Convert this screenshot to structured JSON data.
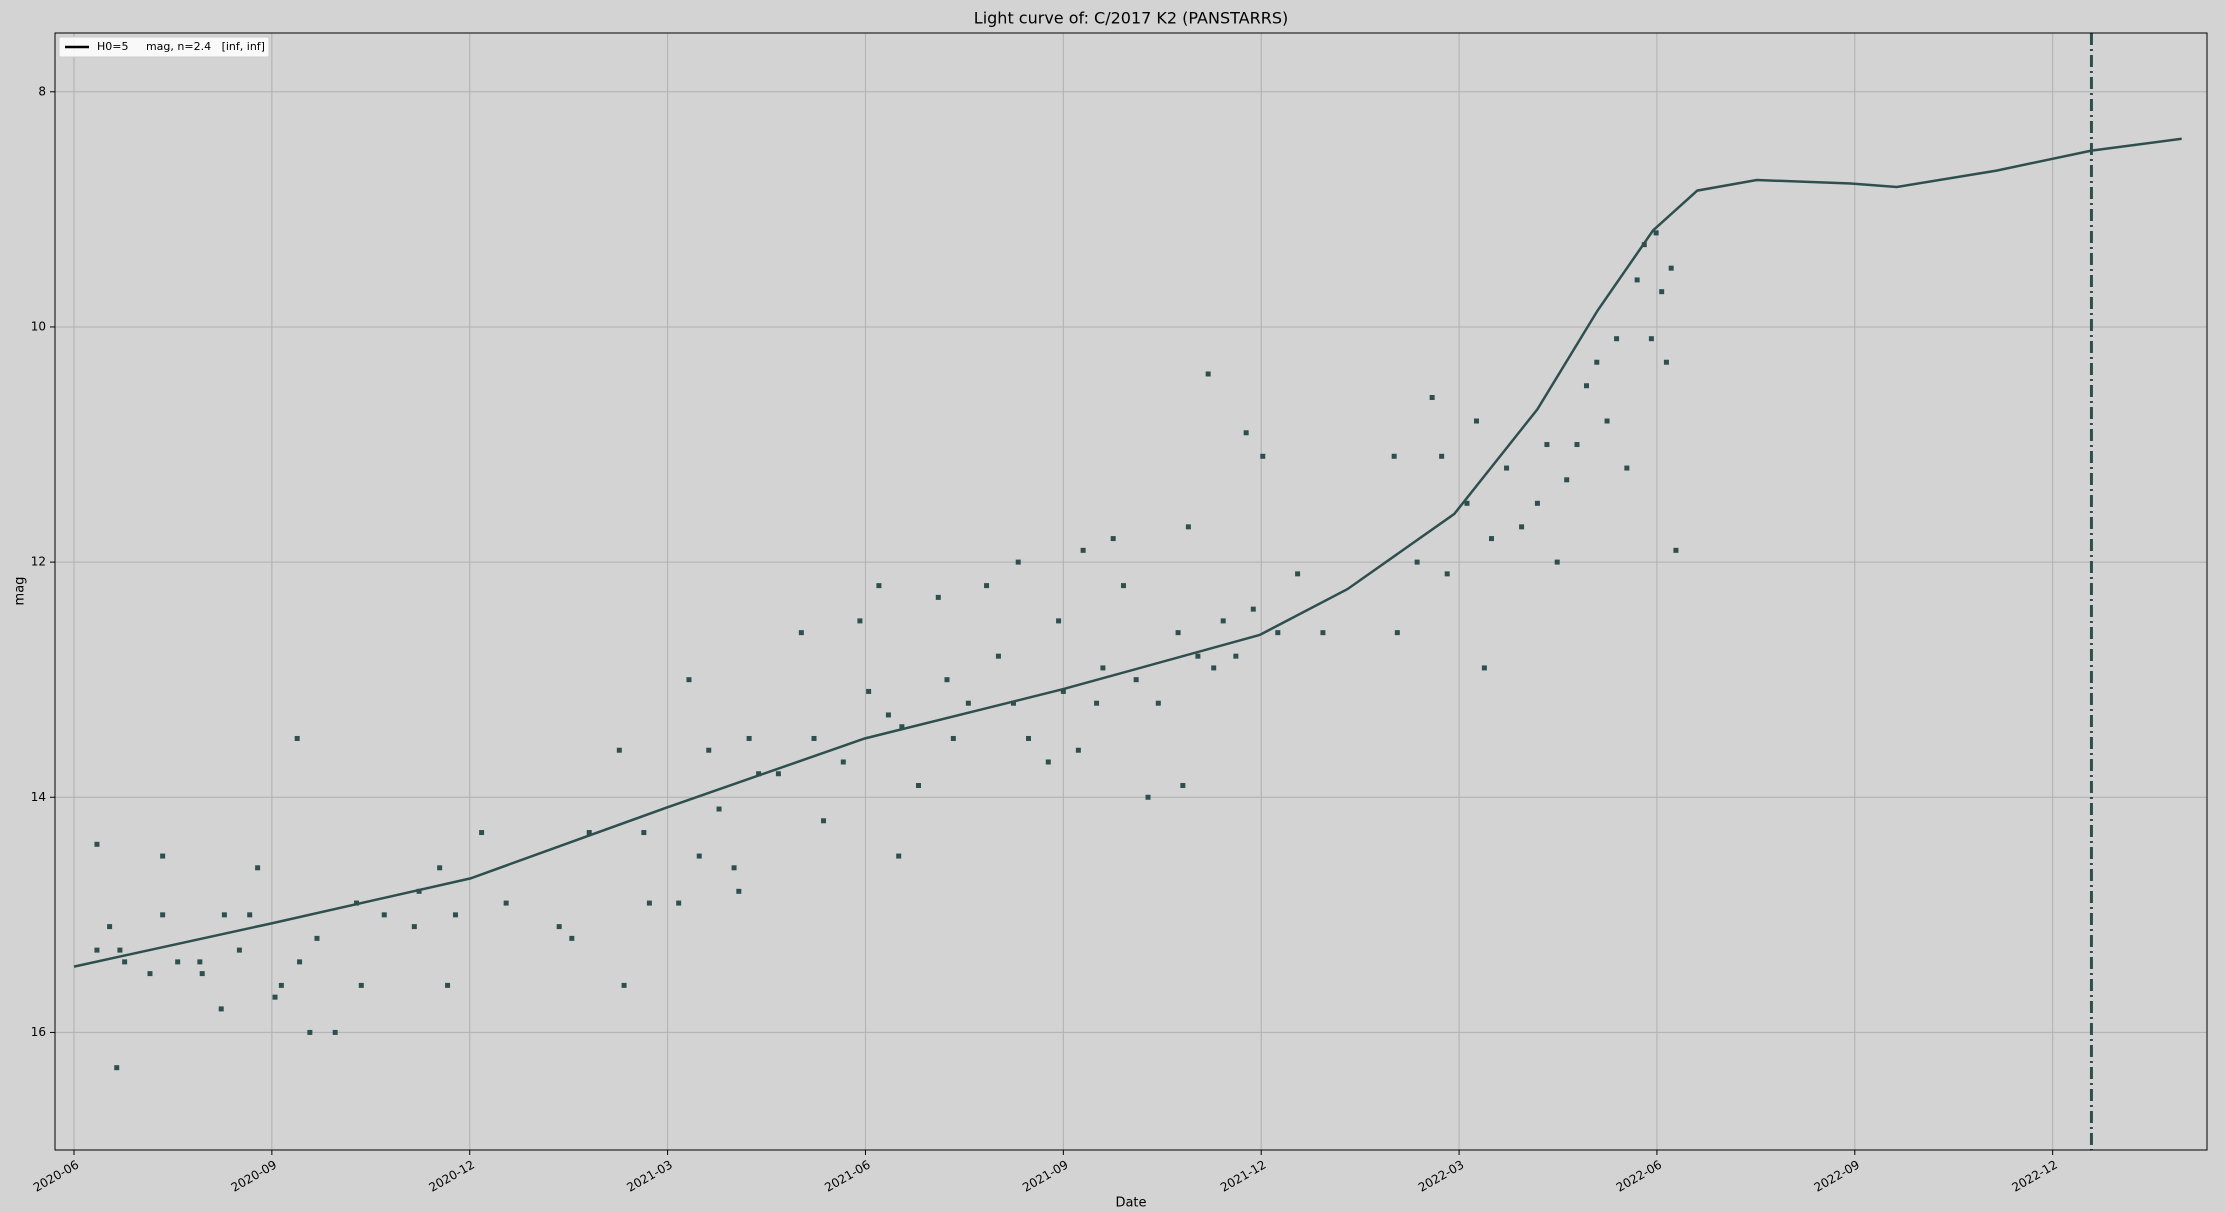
{
  "chart_data": {
    "type": "scatter",
    "title": "Light curve of: C/2017 K2 (PANSTARRS)",
    "x_label": "Date",
    "y_label": "mag",
    "xlim": [
      2020.393,
      2023.112
    ],
    "ylim": [
      17,
      7.5
    ],
    "xticks": [
      {
        "value": 2020.417,
        "label": "2020-06"
      },
      {
        "value": 2020.667,
        "label": "2020-09"
      },
      {
        "value": 2020.917,
        "label": "2020-12"
      },
      {
        "value": 2021.167,
        "label": "2021-03"
      },
      {
        "value": 2021.417,
        "label": "2021-06"
      },
      {
        "value": 2021.667,
        "label": "2021-09"
      },
      {
        "value": 2021.917,
        "label": "2021-12"
      },
      {
        "value": 2022.167,
        "label": "2022-03"
      },
      {
        "value": 2022.417,
        "label": "2022-06"
      },
      {
        "value": 2022.667,
        "label": "2022-09"
      },
      {
        "value": 2022.917,
        "label": "2022-12"
      }
    ],
    "yticks": [
      8,
      10,
      12,
      14,
      16
    ],
    "grid": true,
    "legend": "upper left",
    "points": {
      "color": "#2f4f4f",
      "x": [
        2020.446,
        2020.446,
        2020.462,
        2020.471,
        2020.475,
        2020.481,
        2020.513,
        2020.529,
        2020.529,
        2020.548,
        2020.576,
        2020.579,
        2020.603,
        2020.607,
        2020.626,
        2020.639,
        2020.649,
        2020.671,
        2020.679,
        2020.699,
        2020.702,
        2020.715,
        2020.724,
        2020.747,
        2020.774,
        2020.78,
        2020.809,
        2020.847,
        2020.853,
        2020.879,
        2020.889,
        2020.899,
        2020.932,
        2020.963,
        2021.03,
        2021.046,
        2021.068,
        2021.106,
        2021.112,
        2021.137,
        2021.144,
        2021.181,
        2021.194,
        2021.207,
        2021.219,
        2021.232,
        2021.251,
        2021.257,
        2021.27,
        2021.282,
        2021.307,
        2021.336,
        2021.352,
        2021.364,
        2021.389,
        2021.41,
        2021.421,
        2021.434,
        2021.446,
        2021.459,
        2021.463,
        2021.484,
        2021.509,
        2021.52,
        2021.528,
        2021.547,
        2021.57,
        2021.585,
        2021.604,
        2021.61,
        2021.623,
        2021.648,
        2021.661,
        2021.667,
        2021.686,
        2021.692,
        2021.709,
        2021.717,
        2021.73,
        2021.743,
        2021.759,
        2021.774,
        2021.787,
        2021.812,
        2021.818,
        2021.825,
        2021.837,
        2021.85,
        2021.857,
        2021.869,
        2021.885,
        2021.898,
        2021.907,
        2021.919,
        2021.938,
        2021.963,
        2021.995,
        2022.085,
        2022.089,
        2022.114,
        2022.133,
        2022.145,
        2022.152,
        2022.177,
        2022.189,
        2022.199,
        2022.208,
        2022.227,
        2022.246,
        2022.266,
        2022.278,
        2022.291,
        2022.303,
        2022.316,
        2022.328,
        2022.341,
        2022.354,
        2022.366,
        2022.379,
        2022.392,
        2022.401,
        2022.41,
        2022.416,
        2022.423,
        2022.429,
        2022.435,
        2022.441
      ],
      "values": [
        14.4,
        15.3,
        15.1,
        16.3,
        15.3,
        15.4,
        15.5,
        14.5,
        15.0,
        15.4,
        15.4,
        15.5,
        15.8,
        15.0,
        15.3,
        15.0,
        14.6,
        15.7,
        15.6,
        13.5,
        15.4,
        16.0,
        15.2,
        16.0,
        14.9,
        15.6,
        15.0,
        15.1,
        14.8,
        14.6,
        15.6,
        15.0,
        14.3,
        14.9,
        15.1,
        15.2,
        14.3,
        13.6,
        15.6,
        14.3,
        14.9,
        14.9,
        13.0,
        14.5,
        13.6,
        14.1,
        14.6,
        14.8,
        13.5,
        13.8,
        13.8,
        12.6,
        13.5,
        14.2,
        13.7,
        12.5,
        13.1,
        12.2,
        13.3,
        14.5,
        13.4,
        13.9,
        12.3,
        13.0,
        13.5,
        13.2,
        12.2,
        12.8,
        13.2,
        12.0,
        13.5,
        13.7,
        12.5,
        13.1,
        13.6,
        11.9,
        13.2,
        12.9,
        11.8,
        12.2,
        13.0,
        14.0,
        13.2,
        12.6,
        13.9,
        11.7,
        12.8,
        10.4,
        12.9,
        12.5,
        12.8,
        10.9,
        12.4,
        11.1,
        12.6,
        12.1,
        12.6,
        11.1,
        12.6,
        12.0,
        10.6,
        11.1,
        12.1,
        11.5,
        10.8,
        12.9,
        11.8,
        11.2,
        11.7,
        11.5,
        11.0,
        12.0,
        11.3,
        11.0,
        10.5,
        10.3,
        10.8,
        10.1,
        11.2,
        9.6,
        9.3,
        10.1,
        9.2,
        9.7,
        10.3,
        9.5,
        11.9
      ]
    },
    "line": {
      "name": "H0=5     mag, n=2.4   [inf, inf]",
      "color": "#2f4f4f",
      "x": [
        2020.417,
        2020.668,
        2020.918,
        2021.165,
        2021.416,
        2021.667,
        2021.915,
        2022.026,
        2022.161,
        2022.266,
        2022.342,
        2022.412,
        2022.468,
        2022.543,
        2022.662,
        2022.72,
        2022.846,
        2022.966,
        2023.08
      ],
      "values": [
        15.44,
        15.07,
        14.69,
        14.09,
        13.5,
        13.08,
        12.62,
        12.23,
        11.59,
        10.7,
        9.86,
        9.18,
        8.84,
        8.75,
        8.78,
        8.81,
        8.67,
        8.5,
        8.4
      ]
    },
    "vline": {
      "x": 2022.966,
      "color": "#2f4f4f"
    }
  }
}
